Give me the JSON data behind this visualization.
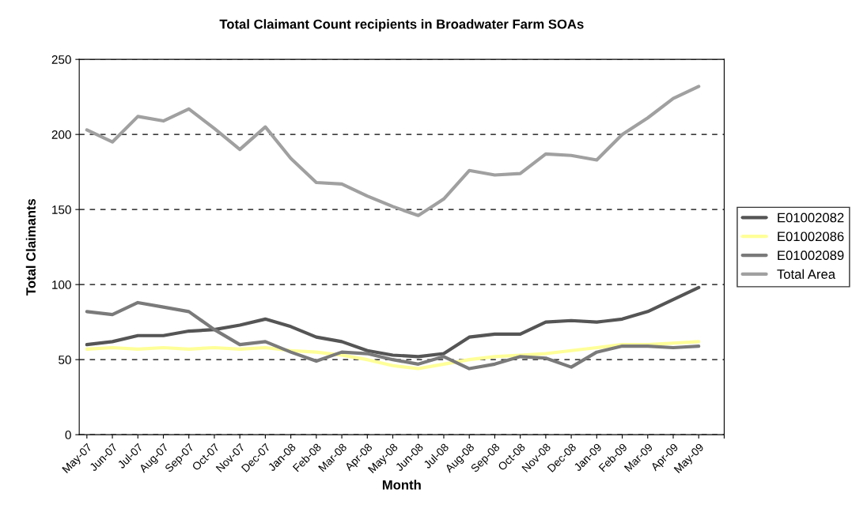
{
  "chart_data": {
    "type": "line",
    "title": "Total Claimant Count recipients in Broadwater Farm SOAs",
    "xlabel": "Month",
    "ylabel": "Total Claimants",
    "categories": [
      "May-07",
      "Jun-07",
      "Jul-07",
      "Aug-07",
      "Sep-07",
      "Oct-07",
      "Nov-07",
      "Dec-07",
      "Jan-08",
      "Feb-08",
      "Mar-08",
      "Apr-08",
      "May-08",
      "Jun-08",
      "Jul-08",
      "Aug-08",
      "Sep-08",
      "Oct-08",
      "Nov-08",
      "Dec-08",
      "Jan-09",
      "Feb-09",
      "Mar-09",
      "Apr-09",
      "May-09",
      null
    ],
    "series": [
      {
        "name": "E01002082",
        "color": "#555555",
        "values": [
          60,
          62,
          66,
          66,
          69,
          70,
          73,
          77,
          72,
          65,
          62,
          56,
          53,
          52,
          54,
          65,
          67,
          67,
          75,
          76,
          75,
          77,
          82,
          90,
          98,
          null
        ]
      },
      {
        "name": "E01002086",
        "color": "#ffff99",
        "values": [
          57,
          58,
          57,
          58,
          57,
          58,
          57,
          58,
          56,
          55,
          53,
          50,
          46,
          44,
          47,
          50,
          52,
          53,
          54,
          56,
          58,
          60,
          60,
          61,
          62,
          null
        ]
      },
      {
        "name": "E01002089",
        "color": "#7a7a7a",
        "values": [
          82,
          80,
          88,
          85,
          82,
          70,
          60,
          62,
          55,
          49,
          55,
          54,
          50,
          47,
          52,
          44,
          47,
          52,
          51,
          45,
          55,
          59,
          59,
          58,
          59,
          null
        ]
      },
      {
        "name": "Total Area",
        "color": "#a0a0a0",
        "values": [
          203,
          195,
          212,
          209,
          217,
          204,
          190,
          205,
          184,
          168,
          167,
          159,
          152,
          146,
          157,
          176,
          173,
          174,
          187,
          186,
          183,
          200,
          211,
          224,
          232,
          null
        ]
      }
    ],
    "ylim": [
      0,
      250
    ],
    "yticks": [
      0,
      50,
      100,
      150,
      200,
      250
    ],
    "grid": "y",
    "line_style": "solid",
    "marker": "none",
    "legend": "right"
  }
}
